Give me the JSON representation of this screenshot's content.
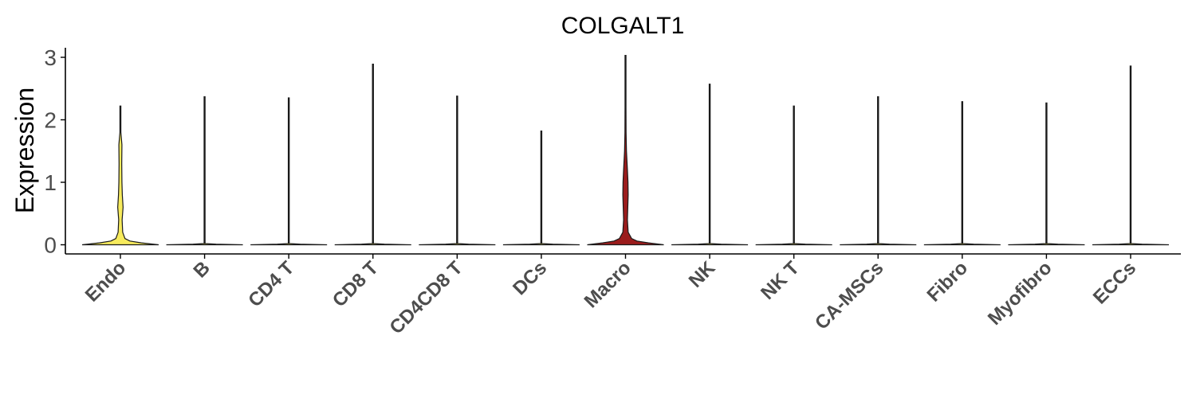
{
  "chart_data": {
    "type": "violin",
    "title": "COLGALT1",
    "xlabel": "",
    "ylabel": "Expression",
    "ylim": [
      -0.15,
      3.18
    ],
    "yticks": [
      0,
      1,
      2,
      3
    ],
    "grid": false,
    "legend": "none",
    "categories": [
      "Endo",
      "B",
      "CD4 T",
      "CD8 T",
      "CD4CD8 T",
      "DCs",
      "Macro",
      "NK",
      "NK T",
      "CA-MSCs",
      "Fibro",
      "Myofibro",
      "ECCs"
    ],
    "colors": [
      "#F7EB5D",
      "#F7EB5D",
      "#F7EB5D",
      "#F7EB5D",
      "#F7EB5D",
      "#F7EB5D",
      "#9B1C1C",
      "#F7EB5D",
      "#F7EB5D",
      "#F7EB5D",
      "#F7EB5D",
      "#F7EB5D",
      "#F7EB5D"
    ],
    "max_values": [
      2.22,
      2.37,
      2.35,
      2.89,
      2.38,
      1.82,
      3.03,
      2.57,
      2.22,
      2.37,
      2.29,
      2.27,
      2.86
    ],
    "density_profiles": [
      [
        [
          0,
          1.0
        ],
        [
          0.03,
          0.55
        ],
        [
          0.06,
          0.25
        ],
        [
          0.1,
          0.12
        ],
        [
          0.2,
          0.06
        ],
        [
          0.4,
          0.045
        ],
        [
          0.6,
          0.07
        ],
        [
          0.8,
          0.05
        ],
        [
          1.0,
          0.04
        ],
        [
          1.3,
          0.035
        ],
        [
          1.6,
          0.04
        ],
        [
          1.8,
          0.012
        ],
        [
          2.22,
          0.0
        ]
      ],
      [
        [
          0,
          1.0
        ],
        [
          0.01,
          0.3
        ],
        [
          0.02,
          0.0
        ],
        [
          2.37,
          0.0
        ]
      ],
      [
        [
          0,
          1.0
        ],
        [
          0.01,
          0.3
        ],
        [
          0.02,
          0.0
        ],
        [
          2.35,
          0.0
        ]
      ],
      [
        [
          0,
          1.0
        ],
        [
          0.01,
          0.3
        ],
        [
          0.02,
          0.0
        ],
        [
          2.89,
          0.0
        ]
      ],
      [
        [
          0,
          1.0
        ],
        [
          0.01,
          0.3
        ],
        [
          0.02,
          0.0
        ],
        [
          2.38,
          0.0
        ]
      ],
      [
        [
          0,
          1.0
        ],
        [
          0.01,
          0.3
        ],
        [
          0.02,
          0.0
        ],
        [
          1.82,
          0.0
        ]
      ],
      [
        [
          0,
          1.0
        ],
        [
          0.03,
          0.6
        ],
        [
          0.06,
          0.3
        ],
        [
          0.1,
          0.16
        ],
        [
          0.2,
          0.07
        ],
        [
          0.4,
          0.05
        ],
        [
          0.6,
          0.06
        ],
        [
          0.8,
          0.07
        ],
        [
          1.0,
          0.065
        ],
        [
          1.2,
          0.05
        ],
        [
          1.5,
          0.025
        ],
        [
          1.8,
          0.015
        ],
        [
          2.2,
          0.008
        ],
        [
          3.03,
          0.0
        ]
      ],
      [
        [
          0,
          1.0
        ],
        [
          0.01,
          0.3
        ],
        [
          0.02,
          0.0
        ],
        [
          2.57,
          0.0
        ]
      ],
      [
        [
          0,
          1.0
        ],
        [
          0.01,
          0.3
        ],
        [
          0.02,
          0.0
        ],
        [
          2.22,
          0.0
        ]
      ],
      [
        [
          0,
          1.0
        ],
        [
          0.01,
          0.3
        ],
        [
          0.02,
          0.0
        ],
        [
          2.37,
          0.0
        ]
      ],
      [
        [
          0,
          1.0
        ],
        [
          0.01,
          0.3
        ],
        [
          0.02,
          0.0
        ],
        [
          2.29,
          0.0
        ]
      ],
      [
        [
          0,
          1.0
        ],
        [
          0.01,
          0.3
        ],
        [
          0.02,
          0.0
        ],
        [
          2.27,
          0.0
        ]
      ],
      [
        [
          0,
          1.0
        ],
        [
          0.01,
          0.3
        ],
        [
          0.02,
          0.0
        ],
        [
          2.86,
          0.0
        ]
      ]
    ]
  }
}
